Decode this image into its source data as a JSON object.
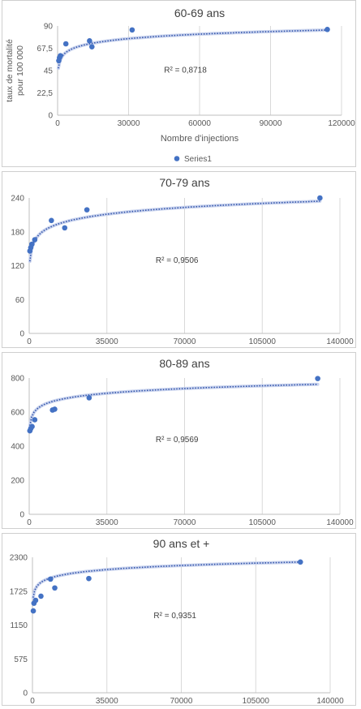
{
  "chart_data": [
    {
      "type": "scatter",
      "title": "60-69 ans",
      "xlabel": "Nombre d'injections",
      "ylabel_lines": [
        "taux de mortalité",
        "pour 100 000"
      ],
      "xlim": [
        0,
        120000
      ],
      "ylim": [
        0,
        90
      ],
      "xticks": [
        0,
        30000,
        60000,
        90000,
        120000
      ],
      "yticks": [
        0,
        22.5,
        45,
        67.5,
        90
      ],
      "xtick_labels": [
        "0",
        "30000",
        "60000",
        "90000",
        "120000"
      ],
      "ytick_labels": [
        "0",
        "22,5",
        "45",
        "67,5",
        "90"
      ],
      "grid": "vertical",
      "legend": {
        "position": "bottom",
        "entries": [
          "Series1"
        ]
      },
      "series": [
        {
          "name": "Series1",
          "color": "#4472C4",
          "points": [
            [
              500,
              55
            ],
            [
              800,
              58
            ],
            [
              1200,
              60
            ],
            [
              3500,
              72
            ],
            [
              13500,
              75
            ],
            [
              14500,
              69
            ],
            [
              31500,
              86
            ],
            [
              114000,
              86.5
            ]
          ]
        }
      ],
      "trend": {
        "type": "logarithmic",
        "a": 6.5,
        "b": 10.2,
        "color": "#3355aa"
      },
      "annotation": "R² = 0,8718",
      "annotation_pos": [
        45000,
        43
      ]
    },
    {
      "type": "scatter",
      "title": "70-79 ans",
      "xlabel": "",
      "ylabel_lines": [],
      "xlim": [
        0,
        140000
      ],
      "ylim": [
        0,
        240
      ],
      "xticks": [
        0,
        35000,
        70000,
        105000,
        140000
      ],
      "yticks": [
        0,
        60,
        120,
        180,
        240
      ],
      "xtick_labels": [
        "0",
        "35000",
        "70000",
        "105000",
        "140000"
      ],
      "ytick_labels": [
        "0",
        "60",
        "120",
        "180",
        "240"
      ],
      "grid": "vertical",
      "series": [
        {
          "name": "",
          "color": "#4472C4",
          "points": [
            [
              300,
              146
            ],
            [
              700,
              152
            ],
            [
              1200,
              158
            ],
            [
              2500,
              166
            ],
            [
              10000,
              200
            ],
            [
              16000,
              187
            ],
            [
              26000,
              219
            ],
            [
              131000,
              240
            ]
          ]
        }
      ],
      "trend": {
        "type": "logarithmic",
        "a": 17.5,
        "b": 28,
        "color": "#3355aa"
      },
      "annotation": "R² = 0,9506",
      "annotation_pos": [
        57000,
        125
      ]
    },
    {
      "type": "scatter",
      "title": "80-89 ans",
      "xlabel": "",
      "ylabel_lines": [],
      "xlim": [
        0,
        140000
      ],
      "ylim": [
        0,
        800
      ],
      "xticks": [
        0,
        35000,
        70000,
        105000,
        140000
      ],
      "yticks": [
        0,
        200,
        400,
        600,
        800
      ],
      "xtick_labels": [
        "0",
        "35000",
        "70000",
        "105000",
        "140000"
      ],
      "ytick_labels": [
        "0",
        "200",
        "400",
        "600",
        "800"
      ],
      "grid": "vertical",
      "series": [
        {
          "name": "",
          "color": "#4472C4",
          "points": [
            [
              300,
              490
            ],
            [
              700,
              503
            ],
            [
              1300,
              515
            ],
            [
              2500,
              555
            ],
            [
              10500,
              612
            ],
            [
              11500,
              617
            ],
            [
              27000,
              684
            ],
            [
              130000,
              797
            ]
          ]
        }
      ],
      "trend": {
        "type": "logarithmic",
        "a": 40,
        "b": 292,
        "color": "#3355aa"
      },
      "annotation": "R² = 0,9569",
      "annotation_pos": [
        57000,
        425
      ]
    },
    {
      "type": "scatter",
      "title": "90 ans et +",
      "xlabel": "",
      "ylabel_lines": [],
      "xlim": [
        0,
        140000
      ],
      "ylim": [
        0,
        2300
      ],
      "xticks": [
        0,
        35000,
        70000,
        105000,
        140000
      ],
      "yticks": [
        0,
        575,
        1150,
        1725,
        2300
      ],
      "xtick_labels": [
        "0",
        "35000",
        "70000",
        "105000",
        "140000"
      ],
      "ytick_labels": [
        "0",
        "575",
        "1150",
        "1725",
        "2300"
      ],
      "grid": "vertical",
      "series": [
        {
          "name": "",
          "color": "#4472C4",
          "points": [
            [
              400,
              1390
            ],
            [
              700,
              1520
            ],
            [
              1500,
              1570
            ],
            [
              4000,
              1640
            ],
            [
              8500,
              1930
            ],
            [
              10500,
              1780
            ],
            [
              26500,
              1940
            ],
            [
              126000,
              2220
            ]
          ]
        }
      ],
      "trend": {
        "type": "logarithmic",
        "a": 100,
        "b": 1045,
        "color": "#3355aa"
      },
      "annotation": "R² = 0,9351",
      "annotation_pos": [
        57000,
        1270
      ]
    }
  ]
}
